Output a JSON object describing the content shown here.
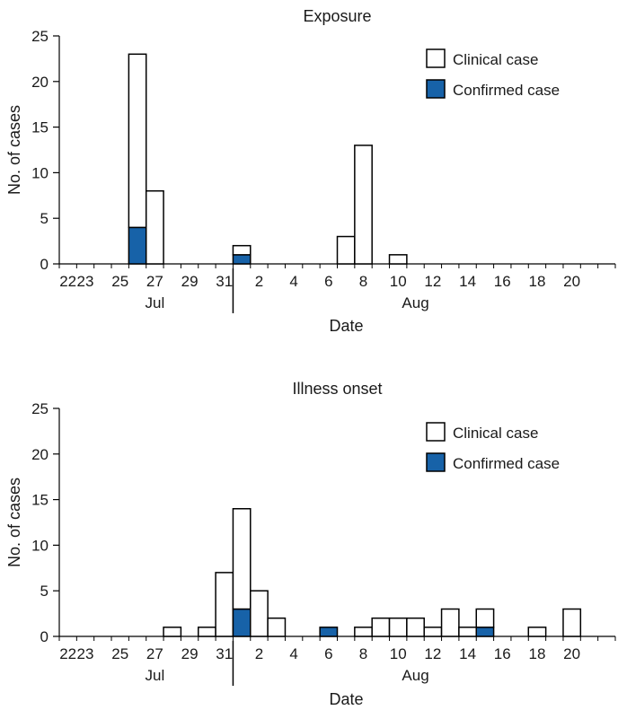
{
  "colors": {
    "clinical_fill": "#ffffff",
    "confirmed_fill": "#1762a8",
    "stroke": "#000000"
  },
  "chart_data": [
    {
      "type": "bar",
      "stacked": true,
      "title": "Exposure",
      "xlabel": "Date",
      "ylabel": "No. of cases",
      "ylim": [
        0,
        25
      ],
      "yticks": [
        0,
        5,
        10,
        15,
        20,
        25
      ],
      "x_start": "Jul 22",
      "x_end": "Aug 22",
      "xtick_labels": [
        "23",
        "25",
        "27",
        "29",
        "31",
        "2",
        "4",
        "6",
        "8",
        "10",
        "12",
        "14",
        "16",
        "18",
        "20",
        "22"
      ],
      "month_labels": [
        "Jul",
        "Aug"
      ],
      "legend": {
        "position": "top-right",
        "items": [
          "Clinical case",
          "Confirmed case"
        ]
      },
      "bars": [
        {
          "date": "Jul 26",
          "total": 23,
          "confirmed": 4
        },
        {
          "date": "Jul 27",
          "total": 8,
          "confirmed": 0
        },
        {
          "date": "Aug 1",
          "total": 2,
          "confirmed": 1
        },
        {
          "date": "Aug 7",
          "total": 3,
          "confirmed": 0
        },
        {
          "date": "Aug 8",
          "total": 13,
          "confirmed": 0
        },
        {
          "date": "Aug 10",
          "total": 1,
          "confirmed": 0
        }
      ]
    },
    {
      "type": "bar",
      "stacked": true,
      "title": "Illness onset",
      "xlabel": "Date",
      "ylabel": "No. of cases",
      "ylim": [
        0,
        25
      ],
      "yticks": [
        0,
        5,
        10,
        15,
        20,
        25
      ],
      "x_start": "Jul 22",
      "x_end": "Aug 22",
      "xtick_labels": [
        "23",
        "25",
        "27",
        "29",
        "31",
        "2",
        "4",
        "6",
        "8",
        "10",
        "12",
        "14",
        "16",
        "18",
        "20",
        "22"
      ],
      "month_labels": [
        "Jul",
        "Aug"
      ],
      "legend": {
        "position": "top-right",
        "items": [
          "Clinical case",
          "Confirmed case"
        ]
      },
      "bars": [
        {
          "date": "Jul 28",
          "total": 1,
          "confirmed": 0
        },
        {
          "date": "Jul 30",
          "total": 1,
          "confirmed": 0
        },
        {
          "date": "Jul 31",
          "total": 7,
          "confirmed": 0
        },
        {
          "date": "Aug 1",
          "total": 14,
          "confirmed": 3
        },
        {
          "date": "Aug 2",
          "total": 5,
          "confirmed": 0
        },
        {
          "date": "Aug 3",
          "total": 2,
          "confirmed": 0
        },
        {
          "date": "Aug 6",
          "total": 1,
          "confirmed": 1
        },
        {
          "date": "Aug 8",
          "total": 1,
          "confirmed": 0
        },
        {
          "date": "Aug 9",
          "total": 2,
          "confirmed": 0
        },
        {
          "date": "Aug 10",
          "total": 2,
          "confirmed": 0
        },
        {
          "date": "Aug 11",
          "total": 2,
          "confirmed": 0
        },
        {
          "date": "Aug 12",
          "total": 1,
          "confirmed": 0
        },
        {
          "date": "Aug 13",
          "total": 3,
          "confirmed": 0
        },
        {
          "date": "Aug 14",
          "total": 1,
          "confirmed": 0
        },
        {
          "date": "Aug 15",
          "total": 3,
          "confirmed": 1
        },
        {
          "date": "Aug 18",
          "total": 1,
          "confirmed": 0
        },
        {
          "date": "Aug 20",
          "total": 3,
          "confirmed": 0
        }
      ]
    }
  ]
}
